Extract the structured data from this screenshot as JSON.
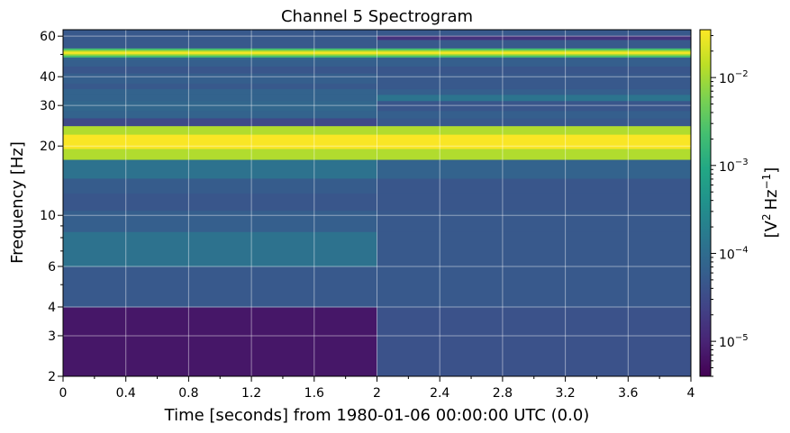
{
  "chart_data": {
    "type": "heatmap",
    "title": "Channel 5 Spectrogram",
    "xlabel": "Time [seconds] from 1980-01-06 00:00:00 UTC (0.0)",
    "ylabel": "Frequency [Hz]",
    "colorbar_label_base": "[V",
    "colorbar_label_rest": "Hz",
    "colorbar_label_exp1": "2",
    "colorbar_label_exp2": "−1",
    "colorbar_label_close": "]",
    "colormap": "viridis",
    "xlim": [
      0,
      4
    ],
    "ylim": [
      2,
      64
    ],
    "y_scale": "log",
    "color_scale": "log",
    "clim": [
      4e-06,
      0.035
    ],
    "grid": true,
    "x_ticks": [
      0,
      0.4,
      0.8,
      1.2,
      1.6,
      2,
      2.4,
      2.8,
      3.2,
      3.6,
      4
    ],
    "x_tick_labels": [
      "0",
      "0.4",
      "0.8",
      "1.2",
      "1.6",
      "2",
      "2.4",
      "2.8",
      "3.2",
      "3.6",
      "4"
    ],
    "y_ticks": [
      2,
      3,
      4,
      6,
      10,
      20,
      30,
      40,
      60
    ],
    "y_tick_labels": [
      "2",
      "3",
      "4",
      "6",
      "10",
      "20",
      "30",
      "40",
      "60"
    ],
    "colorbar_ticks": [
      1e-05,
      0.0001,
      0.001,
      0.01
    ],
    "colorbar_tick_base": "10",
    "colorbar_tick_exps": [
      "−5",
      "−4",
      "−3",
      "−2"
    ],
    "time_segments": [
      [
        0,
        2
      ],
      [
        2,
        4
      ]
    ],
    "cells": [
      {
        "f": [
          2,
          4
        ],
        "v": [
          7e-06,
          4e-05
        ]
      },
      {
        "f": [
          4,
          6
        ],
        "v": [
          5e-05,
          5e-05
        ]
      },
      {
        "f": [
          6,
          8.5
        ],
        "v": [
          0.00012,
          5e-05
        ]
      },
      {
        "f": [
          8.5,
          10.5
        ],
        "v": [
          6e-05,
          5e-05
        ]
      },
      {
        "f": [
          10.5,
          12.5
        ],
        "v": [
          4.5e-05,
          4.5e-05
        ]
      },
      {
        "f": [
          12.5,
          14.5
        ],
        "v": [
          5.5e-05,
          4.5e-05
        ]
      },
      {
        "f": [
          14.5,
          17.5
        ],
        "v": [
          0.00012,
          7e-05
        ]
      },
      {
        "f": [
          17.5,
          19.5
        ],
        "v": [
          0.012,
          0.012
        ]
      },
      {
        "f": [
          19.5,
          22.5
        ],
        "v": [
          0.033,
          0.033
        ]
      },
      {
        "f": [
          22.5,
          24.5
        ],
        "v": [
          0.012,
          0.012
        ]
      },
      {
        "f": [
          24.5,
          26.5
        ],
        "v": [
          3e-05,
          5e-05
        ]
      },
      {
        "f": [
          26.5,
          28.5
        ],
        "v": [
          7e-05,
          6e-05
        ]
      },
      {
        "f": [
          28.5,
          31.5
        ],
        "v": [
          8e-05,
          4.5e-05
        ]
      },
      {
        "f": [
          31.5,
          33.5
        ],
        "v": [
          7e-05,
          0.00013
        ]
      },
      {
        "f": [
          33.5,
          35.5
        ],
        "v": [
          7e-05,
          6e-05
        ]
      },
      {
        "f": [
          35.5,
          37.5
        ],
        "v": [
          5e-05,
          5e-05
        ]
      },
      {
        "f": [
          37.5,
          41.5
        ],
        "v": [
          6e-05,
          5e-05
        ]
      },
      {
        "f": [
          41.5,
          44.5
        ],
        "v": [
          4.5e-05,
          4.5e-05
        ]
      },
      {
        "f": [
          44.5,
          47.5
        ],
        "v": [
          6e-05,
          6e-05
        ]
      },
      {
        "f": [
          47.5,
          48.7
        ],
        "v": [
          8e-05,
          6e-05
        ]
      },
      {
        "f": [
          48.7,
          49.7
        ],
        "v": [
          0.0025,
          0.0025
        ]
      },
      {
        "f": [
          49.7,
          50.5
        ],
        "v": [
          0.012,
          0.012
        ]
      },
      {
        "f": [
          50.5,
          51.5
        ],
        "v": [
          0.033,
          0.033
        ]
      },
      {
        "f": [
          51.5,
          52.3
        ],
        "v": [
          0.012,
          0.012
        ]
      },
      {
        "f": [
          52.3,
          53.3
        ],
        "v": [
          0.0025,
          0.0025
        ]
      },
      {
        "f": [
          53.3,
          58
        ],
        "v": [
          5e-05,
          5e-05
        ]
      },
      {
        "f": [
          58,
          60.5
        ],
        "v": [
          5e-05,
          1.5e-05
        ]
      },
      {
        "f": [
          60.5,
          64
        ],
        "v": [
          5e-05,
          5e-05
        ]
      }
    ]
  }
}
